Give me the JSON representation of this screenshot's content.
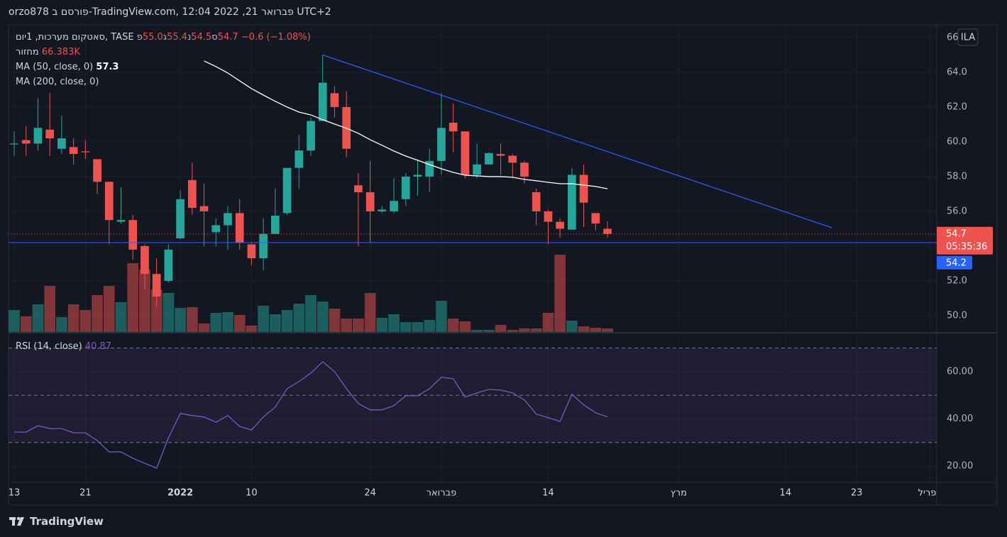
{
  "chart_data": {
    "type": "candlestick",
    "published": "orzo878 פורסם ב-TradingView.com, 12:04 2022 ,21 פברואר UTC+2",
    "legend": {
      "symbol": "סאטקום מערכות, 1יום, TASE",
      "ohlc": [
        {
          "key": "פ",
          "value": "55.0"
        },
        {
          "key": "ג",
          "value": "55.4"
        },
        {
          "key": "נ",
          "value": "54.5"
        },
        {
          "key": "ס",
          "value": "54.7"
        }
      ],
      "change": "−0.6 (−1.08%)"
    },
    "currency": "ILA",
    "brand": "TradingView",
    "up_color": "#26a69a",
    "down_color": "#ef5350",
    "grid": true,
    "xlim": [
      -0.48,
      77.75
    ],
    "xticks": [
      {
        "value": 0,
        "label": "13"
      },
      {
        "value": 6,
        "label": "21"
      },
      {
        "value": 14,
        "label": "2022",
        "emphasis": true
      },
      {
        "value": 20,
        "label": "10"
      },
      {
        "value": 30,
        "label": "24"
      },
      {
        "value": 36,
        "label": "פברואר"
      },
      {
        "value": 45,
        "label": "14"
      },
      {
        "value": 56,
        "label": "מרץ"
      },
      {
        "value": 65,
        "label": "14"
      },
      {
        "value": 71,
        "label": "23"
      },
      {
        "value": 77.2,
        "label": "אפריל"
      }
    ],
    "ylim": [
      49.06,
      66.73
    ],
    "yticks": [
      {
        "value": 50,
        "label": "50.0"
      },
      {
        "value": 52,
        "label": "52.0"
      },
      {
        "value": 54,
        "label": "54.0"
      },
      {
        "value": 56,
        "label": "56.0"
      },
      {
        "value": 58,
        "label": "58.0"
      },
      {
        "value": 60,
        "label": "60.0"
      },
      {
        "value": 62,
        "label": "62.0"
      },
      {
        "value": 64,
        "label": "64.0"
      },
      66
    ],
    "candles": {
      "open": [
        59.85,
        60.1,
        59.9,
        60.7,
        59.6,
        59.7,
        59.45,
        59.0,
        57.7,
        55.4,
        55.5,
        54.0,
        52.4,
        52.0,
        54.45,
        57.8,
        56.3,
        54.8,
        55.2,
        55.9,
        54.1,
        53.3,
        54.7,
        55.9,
        58.5,
        59.5,
        61.2,
        62.8,
        62.0,
        57.5,
        57.1,
        56.0,
        56.0,
        56.7,
        58.0,
        58.0,
        58.9,
        61.1,
        60.6,
        58.1,
        58.7,
        59.3,
        59.2,
        58.8,
        57.1,
        56.0,
        55.4,
        54.95,
        58.1,
        55.9,
        55.0
      ],
      "high": [
        60.6,
        60.9,
        62.5,
        62.8,
        61.5,
        60.2,
        60.1,
        59.0,
        57.7,
        57.4,
        55.8,
        54.1,
        53.3,
        54.1,
        57.2,
        58.8,
        57.6,
        55.6,
        56.3,
        56.7,
        54.2,
        55.6,
        57.3,
        58.5,
        60.4,
        61.4,
        65.0,
        63.2,
        62.9,
        58.2,
        58.9,
        56.3,
        57.9,
        58.2,
        59.0,
        59.6,
        62.8,
        62.2,
        60.6,
        59.9,
        59.4,
        59.9,
        59.3,
        58.9,
        57.3,
        56.1,
        55.6,
        58.5,
        58.7,
        55.9,
        55.4
      ],
      "low": [
        59.2,
        59.2,
        59.5,
        59.2,
        59.3,
        58.7,
        59.0,
        57.0,
        54.1,
        55.3,
        53.2,
        51.5,
        50.5,
        51.9,
        54.4,
        55.8,
        54.0,
        54.0,
        53.8,
        53.8,
        52.9,
        52.6,
        54.7,
        55.8,
        57.3,
        59.2,
        61.2,
        61.4,
        59.1,
        54.0,
        54.2,
        55.9,
        55.9,
        56.3,
        56.9,
        57.1,
        58.1,
        59.4,
        57.9,
        57.9,
        58.7,
        58.1,
        57.9,
        57.6,
        55.2,
        54.1,
        54.5,
        54.95,
        55.1,
        54.9,
        54.5
      ],
      "close": [
        59.9,
        59.9,
        60.8,
        60.2,
        60.2,
        59.3,
        59.4,
        57.7,
        55.5,
        55.5,
        53.8,
        52.4,
        51.1,
        53.8,
        56.7,
        56.2,
        56.0,
        55.2,
        55.9,
        54.2,
        53.3,
        54.7,
        55.75,
        58.5,
        59.5,
        61.2,
        63.4,
        62.0,
        59.6,
        57.1,
        56.0,
        56.1,
        56.6,
        58.0,
        58.1,
        58.9,
        60.8,
        60.6,
        58.1,
        58.7,
        59.35,
        59.2,
        58.8,
        58.0,
        56.0,
        55.4,
        55.0,
        58.1,
        56.5,
        55.3,
        54.7
      ]
    },
    "volume": {
      "name": "מחזור",
      "values": [
        412,
        293,
        519,
        865,
        279,
        519,
        412,
        692,
        865,
        559,
        1290,
        1170,
        798,
        732,
        452,
        466,
        160,
        359,
        372,
        319,
        120,
        492,
        333,
        412,
        532,
        692,
        572,
        439,
        253,
        253,
        732,
        266,
        333,
        186,
        186,
        226,
        585,
        253,
        200,
        40,
        40,
        133,
        40,
        67,
        67,
        359,
        1450,
        213,
        106,
        80,
        66.383
      ],
      "last_label": "66.383K",
      "volume_lim": [
        0,
        5760
      ]
    },
    "ma": [
      {
        "name": "MA (50, close, 0)",
        "color": "#ffffff",
        "last_label": "57.3",
        "values": [
          null,
          null,
          null,
          null,
          null,
          null,
          null,
          null,
          null,
          null,
          null,
          null,
          null,
          null,
          null,
          null,
          64.65,
          64.33,
          63.96,
          63.51,
          63.06,
          62.69,
          62.33,
          62.0,
          61.71,
          61.55,
          61.27,
          61.02,
          60.78,
          60.49,
          60.12,
          59.8,
          59.47,
          59.18,
          58.94,
          58.69,
          58.45,
          58.24,
          58.08,
          58.04,
          58.0,
          58.0,
          57.96,
          57.84,
          57.76,
          57.67,
          57.59,
          57.59,
          57.51,
          57.43,
          57.3
        ]
      },
      {
        "name": "MA (200, close, 0)"
      }
    ],
    "trendline": {
      "color": "#2962ff",
      "x": [
        26.0,
        68.9
      ],
      "y": [
        65.0,
        55.06
      ]
    },
    "support_line": {
      "color": "#2962ff",
      "value": 54.2
    },
    "current_price": {
      "value": 54.7,
      "countdown": "05:35:36"
    },
    "rsi": {
      "name": "RSI (14, close)",
      "color": "#7e57c2",
      "last_label": "40.87",
      "values": [
        34.4,
        34.4,
        37.1,
        35.9,
        35.9,
        34.1,
        34.1,
        30.8,
        26.0,
        26.0,
        23.3,
        21.2,
        19.1,
        32.0,
        42.3,
        41.4,
        40.8,
        38.6,
        41.4,
        36.8,
        35.3,
        40.8,
        45.0,
        52.8,
        55.8,
        59.4,
        64.2,
        60.0,
        52.8,
        46.5,
        43.8,
        43.8,
        45.6,
        49.8,
        49.8,
        52.8,
        57.6,
        57.0,
        49.2,
        51.0,
        52.5,
        52.2,
        51.0,
        48.0,
        42.0,
        40.5,
        38.9,
        50.4,
        45.9,
        42.6,
        40.87
      ],
      "ylim": [
        13.7,
        76.2
      ],
      "yticks": [
        {
          "value": 20,
          "label": "20.00"
        },
        {
          "value": 40,
          "label": "40.00"
        },
        {
          "value": 60,
          "label": "60.00"
        }
      ],
      "bands": [
        30,
        50,
        70
      ]
    }
  }
}
